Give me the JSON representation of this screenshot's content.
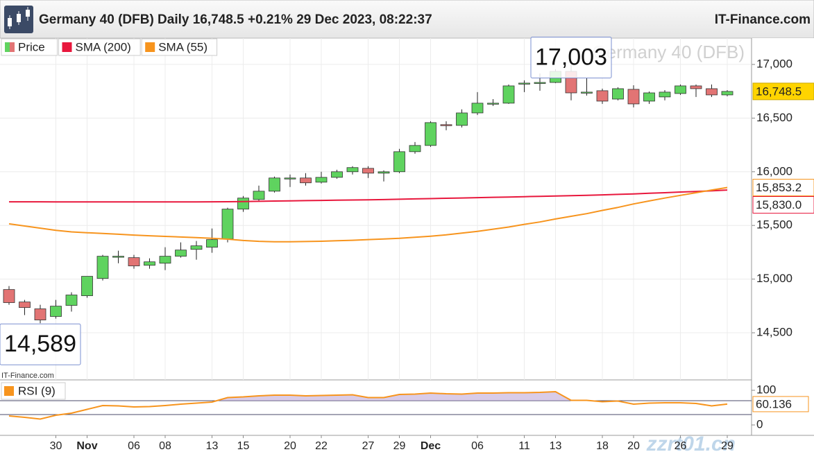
{
  "chart_data": [
    {
      "type": "candlestick",
      "title": "Germany 40 (DFB) Daily 16,748.5 +0.21% 29 Dec 2023, 08:22:37",
      "source": "IT-Finance.com",
      "watermark": "Germany 40 (DFB)",
      "categories": [
        null,
        null,
        null,
        "30",
        null,
        "Nov",
        null,
        null,
        "06",
        null,
        "08",
        null,
        null,
        "13",
        null,
        "15",
        null,
        null,
        "20",
        null,
        "22",
        null,
        null,
        "27",
        null,
        "29",
        null,
        "Dec",
        null,
        null,
        "06",
        null,
        null,
        "11",
        null,
        "13",
        null,
        null,
        "18",
        null,
        "20",
        null,
        null,
        "26",
        null,
        null,
        "29"
      ],
      "ylim": [
        14061,
        17245
      ],
      "yticks": [
        {
          "value": 14500,
          "label": "14,500"
        },
        {
          "value": 15000,
          "label": "15,000"
        },
        {
          "value": 15500,
          "label": "15,500"
        },
        {
          "value": 16000,
          "label": "16,000"
        },
        {
          "value": 16500,
          "label": "16,500"
        },
        {
          "value": 17000,
          "label": "17,000"
        }
      ],
      "grid": true,
      "series": [
        {
          "name": "Price",
          "up_color": "#5fd35f",
          "down_color": "#e27474",
          "end_label": "16,748.5",
          "open": [
            14903,
            14787,
            14723,
            14652,
            14755,
            14845,
            15006,
            15206,
            15200,
            15129,
            15148,
            15213,
            15277,
            15297,
            15374,
            15652,
            15742,
            15819,
            15935,
            15942,
            15903,
            15948,
            16000,
            16032,
            15987,
            16000,
            16187,
            16245,
            16439,
            16432,
            16548,
            16632,
            16639,
            16819,
            16826,
            16832,
            16935,
            16735,
            16755,
            16677,
            16768,
            16658,
            16697,
            16729,
            16800,
            16774,
            16716
          ],
          "high": [
            14935,
            14806,
            14761,
            14806,
            14877,
            15026,
            15226,
            15265,
            15226,
            15194,
            15297,
            15342,
            15355,
            15471,
            15665,
            15774,
            15871,
            15955,
            15974,
            15987,
            16000,
            16019,
            16052,
            16052,
            16013,
            16213,
            16277,
            16471,
            16471,
            16581,
            16742,
            16677,
            16813,
            16852,
            16916,
            16955,
            17003,
            16877,
            16774,
            16787,
            16806,
            16748,
            16761,
            16813,
            16813,
            16813,
            16761
          ],
          "low": [
            14761,
            14665,
            14589,
            14632,
            14697,
            14826,
            14987,
            15148,
            15097,
            15097,
            15084,
            15200,
            15181,
            15245,
            15342,
            15626,
            15729,
            15806,
            15858,
            15871,
            15890,
            15935,
            15974,
            15942,
            15910,
            15987,
            16168,
            16232,
            16387,
            16413,
            16529,
            16613,
            16632,
            16742,
            16755,
            16826,
            16665,
            16710,
            16632,
            16665,
            16600,
            16632,
            16665,
            16716,
            16697,
            16697,
            16703
          ],
          "close": [
            14781,
            14735,
            14619,
            14748,
            14852,
            15026,
            15213,
            15213,
            15123,
            15161,
            15213,
            15271,
            15310,
            15368,
            15652,
            15755,
            15819,
            15942,
            15942,
            15897,
            15948,
            16000,
            16039,
            15987,
            16000,
            16187,
            16245,
            16458,
            16432,
            16548,
            16639,
            16639,
            16800,
            16826,
            16832,
            16935,
            16735,
            16742,
            16658,
            16774,
            16632,
            16735,
            16742,
            16800,
            16774,
            16716,
            16748.5
          ]
        },
        {
          "name": "SMA (200)",
          "color": "#e8173c",
          "end_label": "15,830.0",
          "values": [
            15720,
            15720,
            15720,
            15719,
            15719,
            15719,
            15719,
            15719,
            15719,
            15719,
            15719,
            15719,
            15719,
            15720,
            15721,
            15723,
            15725,
            15727,
            15729,
            15731,
            15733,
            15735,
            15737,
            15739,
            15741,
            15744,
            15747,
            15750,
            15753,
            15756,
            15759,
            15762,
            15765,
            15768,
            15771,
            15774,
            15777,
            15781,
            15785,
            15789,
            15794,
            15800,
            15805,
            15811,
            15816,
            15822,
            15830
          ]
        },
        {
          "name": "SMA (55)",
          "color": "#f7941d",
          "end_label": "15,853.2",
          "values": [
            15515,
            15495,
            15475,
            15455,
            15440,
            15432,
            15425,
            15418,
            15410,
            15404,
            15398,
            15392,
            15386,
            15380,
            15372,
            15360,
            15352,
            15348,
            15348,
            15350,
            15353,
            15357,
            15362,
            15368,
            15374,
            15380,
            15390,
            15400,
            15412,
            15428,
            15445,
            15465,
            15485,
            15510,
            15532,
            15560,
            15585,
            15610,
            15640,
            15668,
            15700,
            15728,
            15755,
            15780,
            15805,
            15830,
            15853.2
          ]
        }
      ],
      "annotations": [
        {
          "label": "17,003",
          "value": 17003
        },
        {
          "label": "14,589",
          "value": 14589
        }
      ]
    },
    {
      "type": "line",
      "source": "IT-Finance.com",
      "watermark": "zzrt01.cn",
      "ylim": [
        -30,
        130
      ],
      "yticks": [
        0,
        100
      ],
      "levels": [
        70,
        30
      ],
      "series": [
        {
          "name": "RSI (9)",
          "color": "#f7941d",
          "end_label": "60.136",
          "values": [
            26,
            22,
            17,
            28,
            34,
            45,
            56,
            55,
            52,
            53,
            56,
            60,
            63,
            66,
            79,
            81,
            84,
            86,
            86,
            84,
            85,
            86,
            87,
            79,
            79,
            88,
            89,
            92,
            90,
            89,
            92,
            92,
            93,
            93,
            94,
            96,
            71,
            71,
            67,
            69,
            60,
            63,
            64,
            64,
            62,
            55,
            60.136
          ]
        }
      ]
    }
  ]
}
